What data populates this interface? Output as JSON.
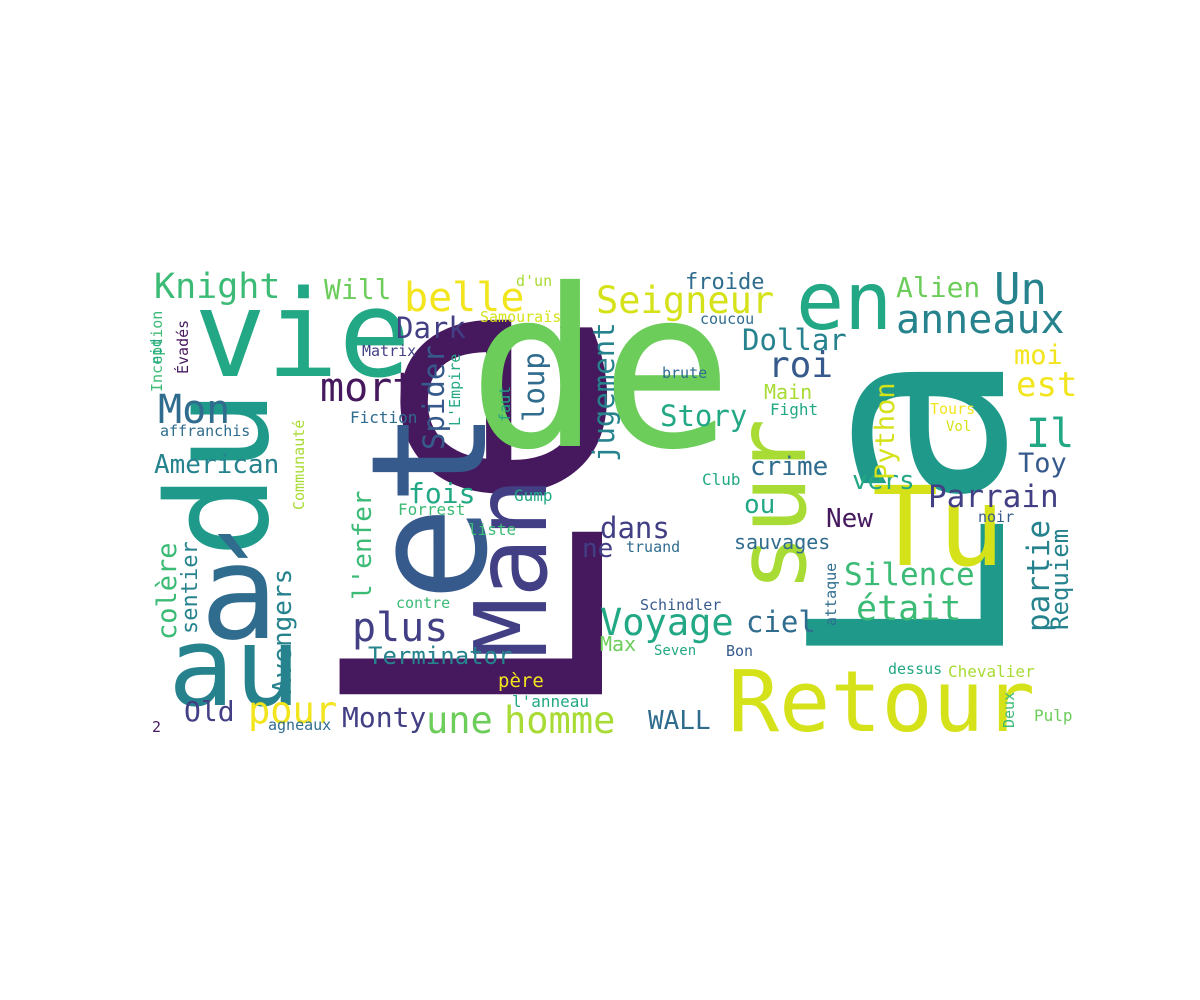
{
  "colors": {
    "dark": "#46185e",
    "purple": "#482576",
    "indigo": "#423f85",
    "blue": "#375a8c",
    "steel": "#2f6c8e",
    "teal": "#26838e",
    "cyan": "#1f9a8a",
    "green": "#22a884",
    "mint": "#3bbb75",
    "lime": "#6ccd5a",
    "yellowgreen": "#a8db34",
    "yellow": "#d5e21a",
    "gold": "#f2e51d"
  },
  "words": [
    {
      "text": "Le"
    },
    {
      "text": "La"
    },
    {
      "text": "de"
    },
    {
      "text": "et"
    },
    {
      "text": "du"
    },
    {
      "text": "vie"
    },
    {
      "text": "au"
    },
    {
      "text": "à"
    },
    {
      "text": "sur"
    },
    {
      "text": "Man"
    },
    {
      "text": "en"
    },
    {
      "text": "Tu"
    },
    {
      "text": "Retour"
    },
    {
      "text": "Knight"
    },
    {
      "text": "Will"
    },
    {
      "text": "belle"
    },
    {
      "text": "Seigneur"
    },
    {
      "text": "Alien"
    },
    {
      "text": "Un"
    },
    {
      "text": "anneaux"
    },
    {
      "text": "d'un"
    },
    {
      "text": "Samouraïs"
    },
    {
      "text": "froide"
    },
    {
      "text": "coucou"
    },
    {
      "text": "Dark"
    },
    {
      "text": "Dollar"
    },
    {
      "text": "Matrix"
    },
    {
      "text": "mort"
    },
    {
      "text": "Mon"
    },
    {
      "text": "roi"
    },
    {
      "text": "moi"
    },
    {
      "text": "est"
    },
    {
      "text": "brute"
    },
    {
      "text": "Main"
    },
    {
      "text": "Fight"
    },
    {
      "text": "Story"
    },
    {
      "text": "Tours"
    },
    {
      "text": "Vol"
    },
    {
      "text": "Fiction"
    },
    {
      "text": "affranchis"
    },
    {
      "text": "Il"
    },
    {
      "text": "American"
    },
    {
      "text": "crime"
    },
    {
      "text": "Toy"
    },
    {
      "text": "vers"
    },
    {
      "text": "Club"
    },
    {
      "text": "fois"
    },
    {
      "text": "Gump"
    },
    {
      "text": "Parrain"
    },
    {
      "text": "Forrest"
    },
    {
      "text": "ou"
    },
    {
      "text": "New"
    },
    {
      "text": "noir"
    },
    {
      "text": "dans"
    },
    {
      "text": "liste"
    },
    {
      "text": "ne"
    },
    {
      "text": "truand"
    },
    {
      "text": "sauvages"
    },
    {
      "text": "Silence"
    },
    {
      "text": "plus"
    },
    {
      "text": "contre"
    },
    {
      "text": "Voyage"
    },
    {
      "text": "Schindler"
    },
    {
      "text": "ciel"
    },
    {
      "text": "était"
    },
    {
      "text": "Max"
    },
    {
      "text": "Seven"
    },
    {
      "text": "Bon"
    },
    {
      "text": "Terminator"
    },
    {
      "text": "père"
    },
    {
      "text": "dessus"
    },
    {
      "text": "Chevalier"
    },
    {
      "text": "pour"
    },
    {
      "text": "Old"
    },
    {
      "text": "l'anneau"
    },
    {
      "text": "Monty"
    },
    {
      "text": "une"
    },
    {
      "text": "homme"
    },
    {
      "text": "WALL"
    },
    {
      "text": "Pulp"
    },
    {
      "text": "2"
    },
    {
      "text": "agneaux"
    },
    {
      "text": "Inception"
    },
    {
      "text": "Évadés"
    },
    {
      "text": "nid"
    },
    {
      "text": "colère"
    },
    {
      "text": "sentier"
    },
    {
      "text": "Avengers"
    },
    {
      "text": "Communauté"
    },
    {
      "text": "L'Empire"
    },
    {
      "text": "l'enfer"
    },
    {
      "text": "Spider"
    },
    {
      "text": "faut"
    },
    {
      "text": "loup"
    },
    {
      "text": "jugement"
    },
    {
      "text": "Python"
    },
    {
      "text": "attaque"
    },
    {
      "text": "partie"
    },
    {
      "text": "Requiem"
    },
    {
      "text": "Deux"
    }
  ]
}
